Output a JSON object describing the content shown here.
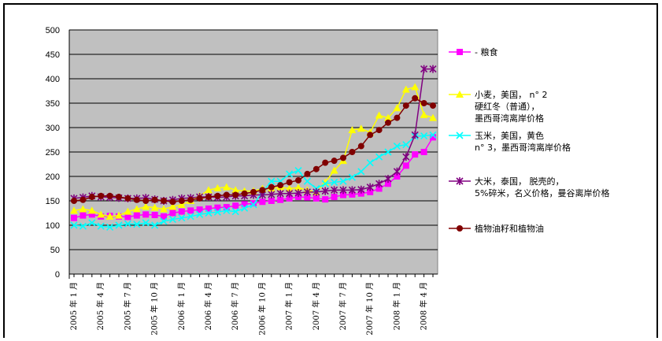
{
  "chart_data": {
    "type": "line",
    "title": "",
    "xlabel": "",
    "ylabel": "",
    "ylim": [
      0,
      500
    ],
    "yticks": [
      "0",
      "50",
      "100",
      "150",
      "200",
      "250",
      "300",
      "350",
      "400",
      "450",
      "500"
    ],
    "x_tick_labels": [
      "2005 年 1 月",
      "2005 年 4 月",
      "2005 年 7 月",
      "2005 年 10 月",
      "2006 年 1 月",
      "2006 年 4 月",
      "2006 年 7 月",
      "2006 年 10 月",
      "2007 年 1 月",
      "2007 年 4 月",
      "2007 年 7 月",
      "2007 年 10 月",
      "2008 年 1 月",
      "2008 年 4 月"
    ],
    "x": [
      "2005-01",
      "2005-02",
      "2005-03",
      "2005-04",
      "2005-05",
      "2005-06",
      "2005-07",
      "2005-08",
      "2005-09",
      "2005-10",
      "2005-11",
      "2005-12",
      "2006-01",
      "2006-02",
      "2006-03",
      "2006-04",
      "2006-05",
      "2006-06",
      "2006-07",
      "2006-08",
      "2006-09",
      "2006-10",
      "2006-11",
      "2006-12",
      "2007-01",
      "2007-02",
      "2007-03",
      "2007-04",
      "2007-05",
      "2007-06",
      "2007-07",
      "2007-08",
      "2007-09",
      "2007-10",
      "2007-11",
      "2007-12",
      "2008-01",
      "2008-02",
      "2008-03",
      "2008-04",
      "2008-05"
    ],
    "grid": true,
    "legend_position": "right",
    "plot_background": "#c0c0c0",
    "series": [
      {
        "name": "粮食",
        "legend_lines": [
          "- 粮食"
        ],
        "color": "#ff00ff",
        "marker": "square",
        "values": [
          115,
          120,
          122,
          118,
          119,
          118,
          117,
          120,
          122,
          121,
          118,
          125,
          128,
          130,
          132,
          134,
          136,
          137,
          140,
          143,
          145,
          148,
          150,
          152,
          155,
          158,
          157,
          155,
          153,
          158,
          162,
          163,
          165,
          168,
          175,
          185,
          200,
          222,
          245,
          250,
          280
        ]
      },
      {
        "name": "小麦，美国， n° 2 硬红冬（普通），墨西哥湾离岸价格",
        "legend_lines": [
          "小麦，美国， n° 2",
          "硬红冬（普通），",
          "墨西哥湾离岸价格"
        ],
        "color": "#ffff00",
        "marker": "triangle",
        "values": [
          130,
          133,
          130,
          122,
          118,
          120,
          128,
          133,
          138,
          136,
          133,
          138,
          142,
          150,
          160,
          172,
          176,
          178,
          172,
          170,
          170,
          175,
          175,
          178,
          175,
          177,
          172,
          168,
          188,
          212,
          232,
          295,
          298,
          290,
          325,
          320,
          340,
          378,
          383,
          326,
          320
        ]
      },
      {
        "name": "玉米，美国，黄色 n° 3，墨西哥湾离岸价格",
        "legend_lines": [
          "玉米，美国，黄色",
          "n° 3，墨西哥湾离岸价格"
        ],
        "color": "#00ffff",
        "marker": "x",
        "values": [
          100,
          98,
          105,
          98,
          96,
          100,
          103,
          102,
          105,
          100,
          108,
          112,
          115,
          118,
          122,
          125,
          127,
          130,
          128,
          135,
          142,
          168,
          190,
          190,
          205,
          212,
          190,
          175,
          185,
          188,
          190,
          198,
          210,
          228,
          240,
          250,
          262,
          265,
          282,
          283,
          285
        ]
      },
      {
        "name": "大米，泰国， 脱壳的，5%碎米，名义价格，曼谷离岸价格",
        "legend_lines": [
          "大米，泰国， 脱壳的，",
          "5%碎米，名义价格，曼谷离岸价格"
        ],
        "color": "#800080",
        "marker": "star",
        "values": [
          155,
          157,
          160,
          158,
          157,
          156,
          155,
          155,
          156,
          153,
          150,
          152,
          155,
          156,
          158,
          158,
          157,
          158,
          160,
          160,
          162,
          162,
          163,
          165,
          165,
          166,
          168,
          168,
          170,
          172,
          172,
          172,
          173,
          178,
          185,
          195,
          210,
          240,
          285,
          420,
          420
        ]
      },
      {
        "name": "植物油籽和植物油",
        "legend_lines": [
          "植物油籽和植物油"
        ],
        "color": "#800000",
        "marker": "circle",
        "values": [
          150,
          152,
          158,
          160,
          160,
          158,
          155,
          152,
          150,
          152,
          150,
          148,
          150,
          152,
          155,
          158,
          160,
          162,
          162,
          165,
          168,
          172,
          178,
          182,
          188,
          192,
          205,
          215,
          228,
          232,
          238,
          250,
          262,
          285,
          295,
          310,
          320,
          345,
          360,
          350,
          345
        ]
      }
    ]
  }
}
